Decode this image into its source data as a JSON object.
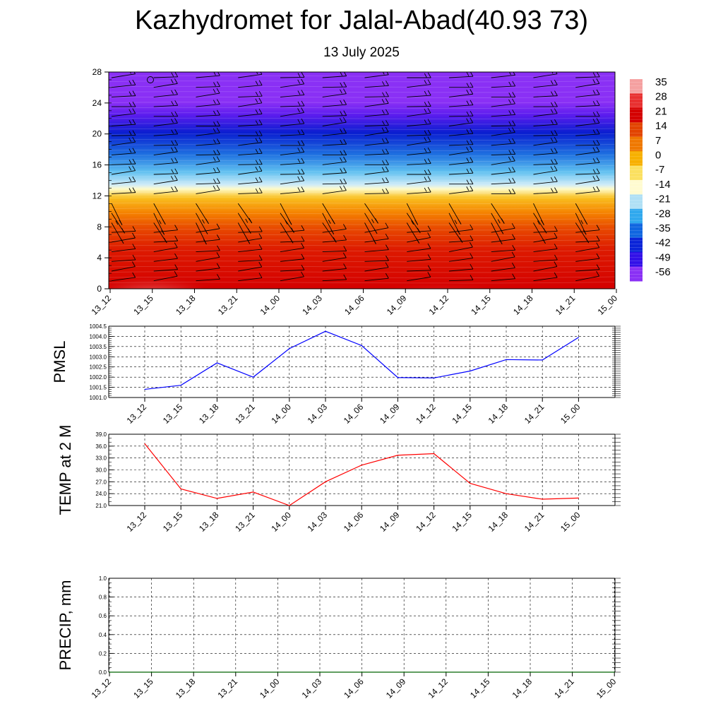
{
  "title": "Kazhydromet for Jalal-Abad(40.93 73)",
  "subtitle": "13 July 2025",
  "colors": {
    "pmsl_line": "#0000ff",
    "temp_line": "#ff0000",
    "precip_line": "#006400",
    "grid": "#000000"
  },
  "chart_data": [
    {
      "type": "heatmap",
      "title": "",
      "xlabel": "",
      "ylabel": "",
      "x": [
        "13_12",
        "13_15",
        "13_18",
        "13_21",
        "14_00",
        "14_03",
        "14_06",
        "14_09",
        "14_12",
        "14_15",
        "14_18",
        "14_21",
        "15_00"
      ],
      "y_ticks": [
        0,
        4,
        8,
        12,
        16,
        20,
        24,
        28
      ],
      "ylim": [
        0,
        28
      ],
      "colorbar": {
        "labels": [
          "35",
          "28",
          "21",
          "14",
          "7",
          "0",
          "-7",
          "-14",
          "-21",
          "-28",
          "-35",
          "-42",
          "-49",
          "-56"
        ],
        "colors": [
          "#f5a0a0",
          "#e83030",
          "#d40000",
          "#e24400",
          "#ef7800",
          "#f7b000",
          "#fbe060",
          "#fffbd0",
          "#b0e0f5",
          "#30a8ee",
          "#1066e0",
          "#0a24d8",
          "#3210e8",
          "#8a30f5"
        ]
      },
      "wind_barbs": true
    },
    {
      "type": "line",
      "title": "",
      "xlabel": "",
      "ylabel": "PMSL",
      "categories": [
        "13_12",
        "13_15",
        "13_18",
        "13_21",
        "14_00",
        "14_03",
        "14_06",
        "14_09",
        "14_12",
        "14_15",
        "14_18",
        "14_21",
        "15_00"
      ],
      "y_ticks": [
        "1001.0",
        "1001.5",
        "1002.0",
        "1002.5",
        "1003.0",
        "1003.5",
        "1004.0",
        "1004.5"
      ],
      "ylim": [
        1001.0,
        1004.5
      ],
      "series": [
        {
          "values": [
            1001.4,
            1001.6,
            1002.7,
            1002.0,
            1003.4,
            1004.25,
            1003.55,
            1001.98,
            1001.96,
            1002.3,
            1002.86,
            1002.84,
            1003.95
          ]
        }
      ],
      "grid": true
    },
    {
      "type": "line",
      "title": "",
      "xlabel": "",
      "ylabel": "TEMP at 2 M",
      "categories": [
        "13_12",
        "13_15",
        "13_18",
        "13_21",
        "14_00",
        "14_03",
        "14_06",
        "14_09",
        "14_12",
        "14_15",
        "14_18",
        "14_21",
        "15_00"
      ],
      "y_ticks": [
        "21.0",
        "24.0",
        "27.0",
        "30.0",
        "33.0",
        "36.0",
        "39.0"
      ],
      "ylim": [
        21.0,
        39.0
      ],
      "series": [
        {
          "values": [
            36.6,
            25.2,
            22.8,
            24.4,
            21.0,
            27.0,
            31.2,
            33.7,
            34.1,
            26.6,
            24.0,
            22.6,
            22.9
          ]
        }
      ],
      "grid": true
    },
    {
      "type": "line",
      "title": "",
      "xlabel": "",
      "ylabel": "PRECIP, mm",
      "categories": [
        "13_12",
        "13_15",
        "13_18",
        "13_21",
        "14_00",
        "14_03",
        "14_06",
        "14_09",
        "14_12",
        "14_15",
        "14_18",
        "14_21",
        "15_00"
      ],
      "y_ticks": [
        "0.0",
        "0.2",
        "0.4",
        "0.6",
        "0.8",
        "1.0"
      ],
      "ylim": [
        0.0,
        1.0
      ],
      "series": [
        {
          "values": [
            0,
            0,
            0,
            0,
            0,
            0,
            0,
            0,
            0,
            0,
            0,
            0,
            0
          ]
        }
      ],
      "grid": true
    }
  ]
}
